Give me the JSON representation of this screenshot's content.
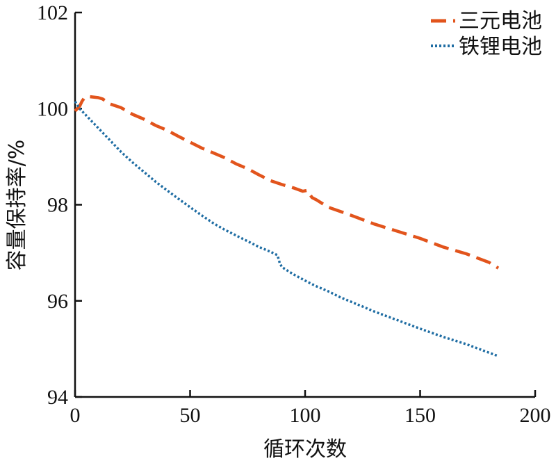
{
  "chart_data": {
    "type": "line",
    "title": "",
    "xlabel": "循环次数",
    "ylabel": "容量保持率/%",
    "xlim": [
      0,
      200
    ],
    "ylim": [
      94,
      102
    ],
    "xticks": [
      0,
      50,
      100,
      150,
      200
    ],
    "yticks": [
      94,
      96,
      98,
      100,
      102
    ],
    "grid": false,
    "legend_position": "top-right",
    "series": [
      {
        "name": "三元电池",
        "color": "#e2541c",
        "style": "dashed",
        "x": [
          0,
          1,
          2,
          3,
          4,
          5,
          6,
          10,
          12,
          15,
          20,
          25,
          30,
          35,
          40,
          45,
          50,
          55,
          60,
          65,
          70,
          75,
          80,
          85,
          90,
          95,
          99,
          101,
          102,
          103,
          105,
          110,
          120,
          130,
          140,
          150,
          160,
          170,
          180,
          184
        ],
        "values": [
          99.95,
          100.0,
          100.05,
          100.15,
          100.22,
          100.25,
          100.25,
          100.23,
          100.2,
          100.1,
          100.02,
          99.88,
          99.78,
          99.65,
          99.55,
          99.42,
          99.3,
          99.18,
          99.08,
          98.98,
          98.85,
          98.75,
          98.62,
          98.5,
          98.42,
          98.35,
          98.28,
          98.3,
          98.22,
          98.15,
          98.1,
          97.95,
          97.78,
          97.6,
          97.45,
          97.3,
          97.12,
          96.98,
          96.8,
          96.68
        ]
      },
      {
        "name": "铁锂电池",
        "color": "#1f6da3",
        "style": "dotted",
        "x": [
          0,
          2,
          5,
          10,
          15,
          20,
          25,
          30,
          35,
          40,
          45,
          50,
          55,
          60,
          65,
          70,
          75,
          80,
          85,
          88,
          89,
          90,
          95,
          100,
          105,
          110,
          115,
          120,
          125,
          130,
          140,
          150,
          160,
          170,
          180,
          184
        ],
        "values": [
          100.15,
          100.0,
          99.85,
          99.6,
          99.35,
          99.1,
          98.88,
          98.68,
          98.48,
          98.3,
          98.12,
          97.95,
          97.78,
          97.62,
          97.48,
          97.36,
          97.24,
          97.12,
          97.02,
          96.95,
          96.78,
          96.7,
          96.55,
          96.42,
          96.3,
          96.2,
          96.08,
          95.98,
          95.88,
          95.78,
          95.6,
          95.42,
          95.25,
          95.1,
          94.92,
          94.85
        ]
      }
    ]
  }
}
